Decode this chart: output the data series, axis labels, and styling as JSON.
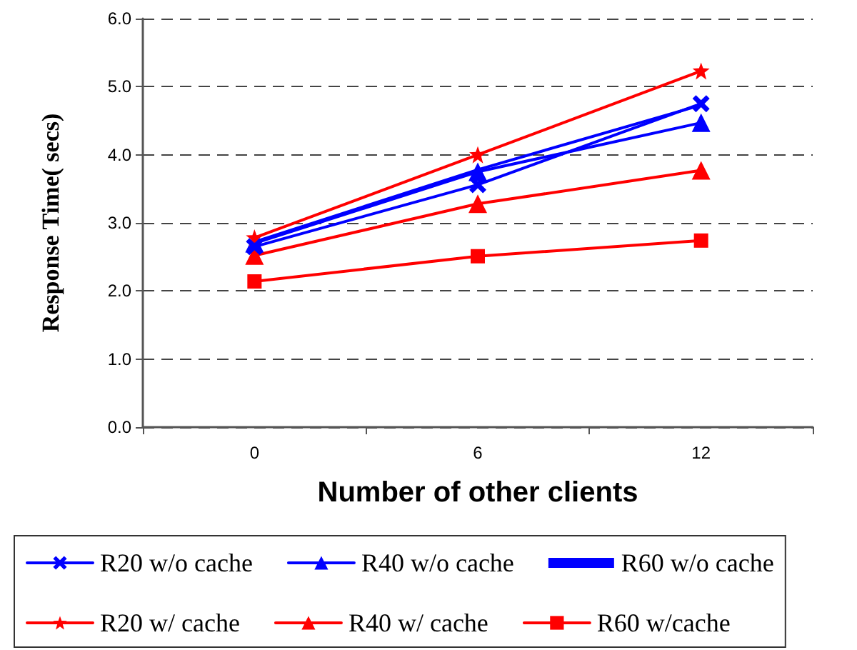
{
  "chart_data": {
    "type": "line",
    "xlabel": "Number of other clients",
    "ylabel": "Response Time( secs)",
    "categories": [
      "0",
      "6",
      "12"
    ],
    "series": [
      {
        "name": "R20 w/o cache",
        "color": "#0000ff",
        "marker": "cross",
        "values": [
          2.65,
          3.56,
          4.75
        ]
      },
      {
        "name": "R40 w/o cache",
        "color": "#0000ff",
        "marker": "triangle",
        "values": [
          2.7,
          3.75,
          4.47
        ]
      },
      {
        "name": "R60 w/o cache",
        "color": "#0000ff",
        "marker": "none",
        "values": [
          2.72,
          3.78,
          4.73
        ]
      },
      {
        "name": "R20 w/ cache",
        "color": "#ff0000",
        "marker": "star",
        "values": [
          2.78,
          4.0,
          5.23
        ]
      },
      {
        "name": "R40 w/ cache",
        "color": "#ff0000",
        "marker": "triangle",
        "values": [
          2.52,
          3.28,
          3.77
        ]
      },
      {
        "name": "R60 w/cache",
        "color": "#ff0000",
        "marker": "square",
        "values": [
          2.14,
          2.51,
          2.74
        ]
      }
    ],
    "ylim": [
      0,
      6
    ],
    "yticks": [
      {
        "value": 0,
        "label": "0.0"
      },
      {
        "value": 1,
        "label": "1.0"
      },
      {
        "value": 2,
        "label": "2.0"
      },
      {
        "value": 3,
        "label": "3.0"
      },
      {
        "value": 4,
        "label": "4.0"
      },
      {
        "value": 5,
        "label": "5.0"
      },
      {
        "value": 6,
        "label": "6.0"
      }
    ],
    "grid": "y",
    "legend": "bottom",
    "line_style": "solid"
  }
}
